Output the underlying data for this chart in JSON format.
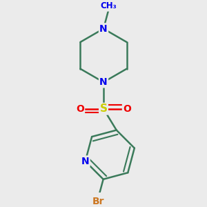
{
  "background_color": "#ebebeb",
  "bond_color": "#3a7a5a",
  "bond_width": 1.8,
  "N_color": "#0000ee",
  "O_color": "#ee0000",
  "S_color": "#cccc00",
  "Br_color": "#cc7722",
  "font_size": 10,
  "methyl_label": "CH₃",
  "N_label": "N",
  "S_label": "S",
  "O_label": "O",
  "Br_label": "Br"
}
